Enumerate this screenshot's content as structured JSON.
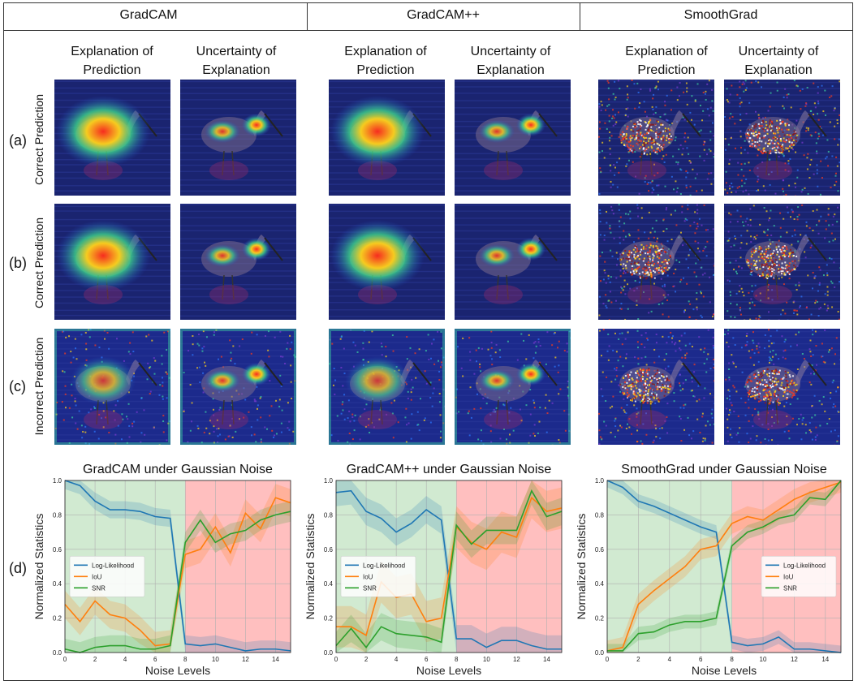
{
  "methods": [
    "GradCAM",
    "GradCAM++",
    "SmoothGrad"
  ],
  "column_headers": {
    "explanation": "Explanation of Prediction",
    "uncertainty": "Uncertainty of Explanation",
    "explanation_l1": "Explanation of",
    "explanation_l2": "Prediction",
    "uncertainty_l1": "Uncertainty of",
    "uncertainty_l2": "Explanation"
  },
  "rows": [
    {
      "letter": "(a)",
      "label": "Correct Prediction"
    },
    {
      "letter": "(b)",
      "label": "Correct Prediction"
    },
    {
      "letter": "(c)",
      "label": "Incorrect Prediction"
    },
    {
      "letter": "(d)",
      "label": ""
    }
  ],
  "colors": {
    "loglik": "#1f77b4",
    "iou": "#ff7f0e",
    "snr": "#2ca02c",
    "clean_region": "#2ca02c",
    "noisy_region": "#ff0000"
  },
  "chart_data": [
    {
      "type": "line",
      "title": "GradCAM under Gaussian Noise",
      "xlabel": "Noise Levels",
      "ylabel": "Normalized Statistics",
      "xlim": [
        0,
        15
      ],
      "ylim": [
        0,
        1.0
      ],
      "x_ticks": [
        "0",
        "2",
        "4",
        "6",
        "8",
        "10",
        "12",
        "14"
      ],
      "y_ticks": [
        "0.0",
        "0.2",
        "0.4",
        "0.6",
        "0.8",
        "1.0"
      ],
      "legend": "center-left",
      "regions": [
        {
          "from": 0,
          "to": 8,
          "kind": "clean"
        },
        {
          "from": 8,
          "to": 15,
          "kind": "noisy"
        }
      ],
      "x": [
        0,
        1,
        2,
        3,
        4,
        5,
        6,
        7,
        8,
        9,
        10,
        11,
        12,
        13,
        14,
        15
      ],
      "series": [
        {
          "name": "Log-Likelihood",
          "values": [
            1.0,
            0.97,
            0.88,
            0.83,
            0.83,
            0.82,
            0.79,
            0.78,
            0.05,
            0.04,
            0.05,
            0.03,
            0.01,
            0.02,
            0.02,
            0.01
          ],
          "band": 0.05
        },
        {
          "name": "IoU",
          "values": [
            0.28,
            0.18,
            0.3,
            0.22,
            0.2,
            0.13,
            0.04,
            0.05,
            0.57,
            0.6,
            0.73,
            0.58,
            0.81,
            0.72,
            0.9,
            0.87
          ],
          "band": 0.08
        },
        {
          "name": "SNR",
          "values": [
            0.02,
            0.0,
            0.03,
            0.04,
            0.04,
            0.02,
            0.02,
            0.04,
            0.64,
            0.77,
            0.64,
            0.69,
            0.71,
            0.77,
            0.8,
            0.82
          ],
          "band": 0.06
        }
      ]
    },
    {
      "type": "line",
      "title": "GradCAM++ under Gaussian Noise",
      "xlabel": "Noise Levels",
      "ylabel": "Normalized Statistics",
      "xlim": [
        0,
        15
      ],
      "ylim": [
        0,
        1.0
      ],
      "x_ticks": [
        "0",
        "2",
        "4",
        "6",
        "8",
        "10",
        "12",
        "14"
      ],
      "y_ticks": [
        "0.0",
        "0.2",
        "0.4",
        "0.6",
        "0.8",
        "1.0"
      ],
      "legend": "center-left",
      "regions": [
        {
          "from": 0,
          "to": 8,
          "kind": "clean"
        },
        {
          "from": 8,
          "to": 15,
          "kind": "noisy"
        }
      ],
      "x": [
        0,
        1,
        2,
        3,
        4,
        5,
        6,
        7,
        8,
        9,
        10,
        11,
        12,
        13,
        14,
        15
      ],
      "series": [
        {
          "name": "Log-Likelihood",
          "values": [
            0.93,
            0.94,
            0.82,
            0.78,
            0.7,
            0.75,
            0.83,
            0.77,
            0.08,
            0.08,
            0.03,
            0.07,
            0.07,
            0.04,
            0.02,
            0.02
          ],
          "band": 0.08
        },
        {
          "name": "IoU",
          "values": [
            0.15,
            0.15,
            0.1,
            0.41,
            0.32,
            0.34,
            0.18,
            0.2,
            0.73,
            0.64,
            0.6,
            0.7,
            0.67,
            0.9,
            0.82,
            0.84
          ],
          "band": 0.12
        },
        {
          "name": "SNR",
          "values": [
            0.04,
            0.14,
            0.03,
            0.15,
            0.11,
            0.1,
            0.09,
            0.06,
            0.74,
            0.63,
            0.71,
            0.71,
            0.71,
            0.94,
            0.79,
            0.82
          ],
          "band": 0.08
        }
      ]
    },
    {
      "type": "line",
      "title": "SmoothGrad under Gaussian Noise",
      "xlabel": "Noise Levels",
      "ylabel": "Normalized Statistics",
      "xlim": [
        0,
        15
      ],
      "ylim": [
        0,
        1.0
      ],
      "x_ticks": [
        "0",
        "2",
        "4",
        "6",
        "8",
        "10",
        "12",
        "14"
      ],
      "y_ticks": [
        "0.0",
        "0.2",
        "0.4",
        "0.6",
        "0.8",
        "1.0"
      ],
      "legend": "center-right",
      "regions": [
        {
          "from": 0,
          "to": 8,
          "kind": "clean"
        },
        {
          "from": 8,
          "to": 15,
          "kind": "noisy"
        }
      ],
      "x": [
        0,
        1,
        2,
        3,
        4,
        5,
        6,
        7,
        8,
        9,
        10,
        11,
        12,
        13,
        14,
        15
      ],
      "series": [
        {
          "name": "Log-Likelihood",
          "values": [
            1.0,
            0.96,
            0.88,
            0.85,
            0.81,
            0.77,
            0.73,
            0.7,
            0.06,
            0.04,
            0.05,
            0.09,
            0.02,
            0.02,
            0.01,
            0.0
          ],
          "band": 0.04
        },
        {
          "name": "IoU",
          "values": [
            0.01,
            0.03,
            0.28,
            0.36,
            0.43,
            0.5,
            0.6,
            0.62,
            0.75,
            0.79,
            0.77,
            0.83,
            0.89,
            0.93,
            0.96,
            0.99
          ],
          "band": 0.06
        },
        {
          "name": "SNR",
          "values": [
            0.01,
            0.01,
            0.11,
            0.12,
            0.16,
            0.18,
            0.18,
            0.2,
            0.62,
            0.7,
            0.73,
            0.78,
            0.8,
            0.9,
            0.89,
            1.0
          ],
          "band": 0.04
        }
      ]
    }
  ]
}
